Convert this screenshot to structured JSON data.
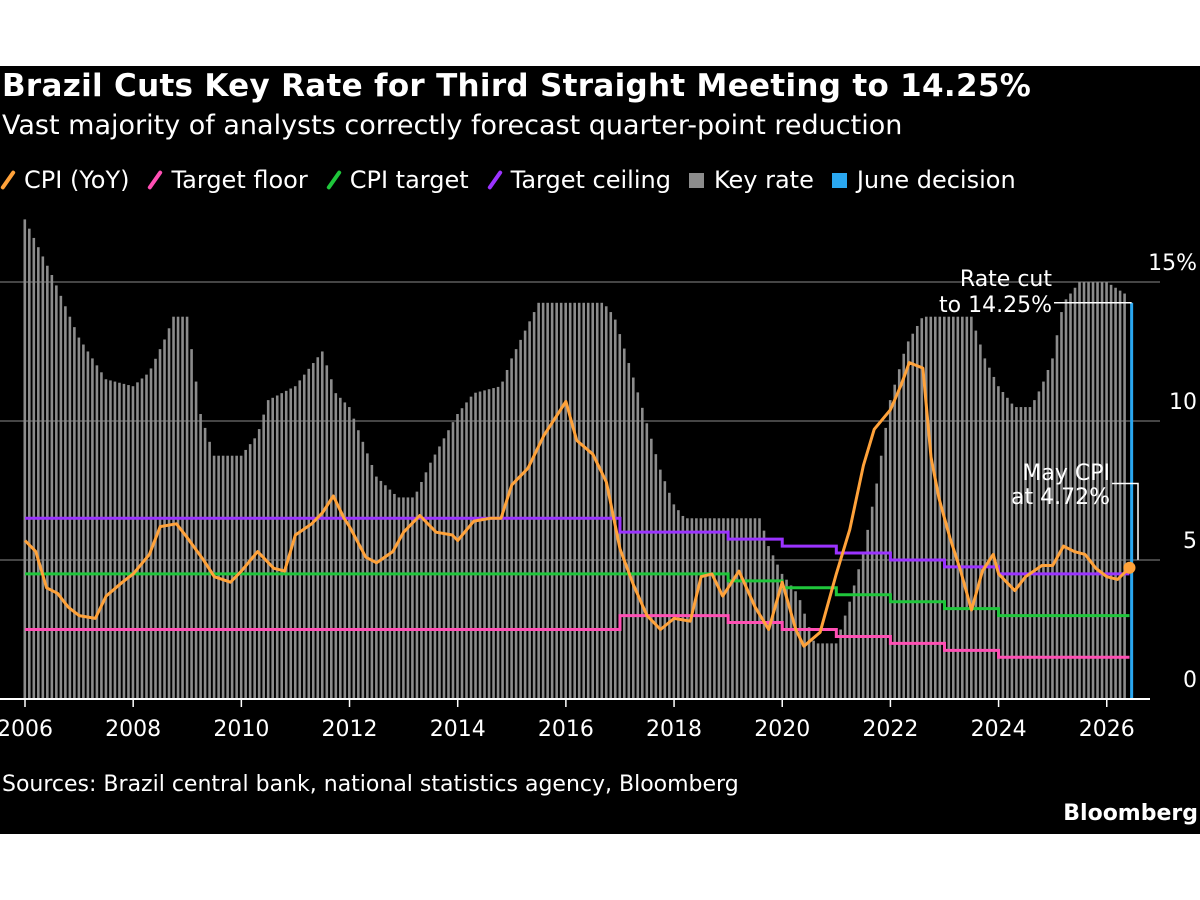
{
  "header": {
    "title": "Brazil Cuts Key Rate for Third Straight Meeting to 14.25%",
    "subtitle": "Vast majority of analysts correctly forecast quarter-point reduction"
  },
  "legend": [
    {
      "label": "CPI (YoY)",
      "color": "#ffa23a",
      "shape": "slash"
    },
    {
      "label": "Target floor",
      "color": "#ff4fb4",
      "shape": "slash"
    },
    {
      "label": "CPI target",
      "color": "#1fc63b",
      "shape": "slash"
    },
    {
      "label": "Target ceiling",
      "color": "#9b33ff",
      "shape": "slash"
    },
    {
      "label": "Key rate",
      "color": "#8c8c8c",
      "shape": "square"
    },
    {
      "label": "June decision",
      "color": "#2aa7f0",
      "shape": "square"
    }
  ],
  "annotations": {
    "rate_cut_line1": "Rate cut",
    "rate_cut_line2": "to 14.25%",
    "cpi_line1": "May CPI",
    "cpi_line2": "at 4.72%"
  },
  "footer": {
    "source": "Sources: Brazil central bank, national statistics agency, Bloomberg",
    "brand": "Bloomberg"
  },
  "chart_data": {
    "type": "bar",
    "x_ticks": [
      "2006",
      "2008",
      "2010",
      "2012",
      "2014",
      "2016",
      "2018",
      "2020",
      "2022",
      "2024",
      "2026"
    ],
    "y_ticks": [
      {
        "value": 0,
        "label": "0"
      },
      {
        "value": 5,
        "label": "5"
      },
      {
        "value": 10,
        "label": "10"
      },
      {
        "value": 15,
        "label": "15%"
      }
    ],
    "xlim": [
      2006.0,
      2026.67
    ],
    "ylim": [
      0,
      17.3
    ],
    "gridlines": [
      5,
      10,
      15
    ],
    "series": [
      {
        "name": "Key rate",
        "type": "bar",
        "color": "#8c8c8c",
        "points": [
          [
            2006.0,
            17.25
          ],
          [
            2006.5,
            15.25
          ],
          [
            2007.0,
            13.0
          ],
          [
            2007.5,
            11.5
          ],
          [
            2008.0,
            11.25
          ],
          [
            2008.3,
            11.75
          ],
          [
            2008.6,
            13.0
          ],
          [
            2008.75,
            13.75
          ],
          [
            2009.0,
            13.75
          ],
          [
            2009.25,
            10.25
          ],
          [
            2009.5,
            8.75
          ],
          [
            2010.0,
            8.75
          ],
          [
            2010.3,
            9.5
          ],
          [
            2010.5,
            10.75
          ],
          [
            2011.0,
            11.25
          ],
          [
            2011.5,
            12.5
          ],
          [
            2011.75,
            11.0
          ],
          [
            2012.0,
            10.5
          ],
          [
            2012.5,
            8.0
          ],
          [
            2012.9,
            7.25
          ],
          [
            2013.2,
            7.25
          ],
          [
            2013.5,
            8.5
          ],
          [
            2014.0,
            10.25
          ],
          [
            2014.3,
            11.0
          ],
          [
            2014.8,
            11.25
          ],
          [
            2015.0,
            12.25
          ],
          [
            2015.5,
            14.25
          ],
          [
            2016.7,
            14.25
          ],
          [
            2016.9,
            13.75
          ],
          [
            2017.3,
            11.25
          ],
          [
            2017.75,
            8.25
          ],
          [
            2018.0,
            7.0
          ],
          [
            2018.2,
            6.5
          ],
          [
            2019.6,
            6.5
          ],
          [
            2019.75,
            5.5
          ],
          [
            2020.0,
            4.5
          ],
          [
            2020.3,
            3.75
          ],
          [
            2020.6,
            2.0
          ],
          [
            2021.0,
            2.0
          ],
          [
            2021.25,
            3.5
          ],
          [
            2021.5,
            5.25
          ],
          [
            2021.75,
            7.75
          ],
          [
            2022.0,
            10.75
          ],
          [
            2022.3,
            12.75
          ],
          [
            2022.6,
            13.75
          ],
          [
            2023.5,
            13.75
          ],
          [
            2023.75,
            12.25
          ],
          [
            2024.0,
            11.25
          ],
          [
            2024.3,
            10.5
          ],
          [
            2024.6,
            10.5
          ],
          [
            2024.8,
            11.25
          ],
          [
            2025.0,
            12.25
          ],
          [
            2025.2,
            14.25
          ],
          [
            2025.5,
            15.0
          ],
          [
            2026.0,
            15.0
          ],
          [
            2026.2,
            14.75
          ],
          [
            2026.4,
            14.5
          ]
        ]
      },
      {
        "name": "CPI (YoY)",
        "type": "line",
        "color": "#ffa23a",
        "points": [
          [
            2006.0,
            5.7
          ],
          [
            2006.2,
            5.3
          ],
          [
            2006.4,
            4.0
          ],
          [
            2006.6,
            3.8
          ],
          [
            2006.8,
            3.3
          ],
          [
            2007.0,
            3.0
          ],
          [
            2007.3,
            2.9
          ],
          [
            2007.5,
            3.7
          ],
          [
            2007.8,
            4.2
          ],
          [
            2008.0,
            4.5
          ],
          [
            2008.3,
            5.2
          ],
          [
            2008.5,
            6.2
          ],
          [
            2008.8,
            6.3
          ],
          [
            2009.0,
            5.8
          ],
          [
            2009.3,
            5.0
          ],
          [
            2009.5,
            4.4
          ],
          [
            2009.8,
            4.2
          ],
          [
            2010.0,
            4.6
          ],
          [
            2010.3,
            5.3
          ],
          [
            2010.6,
            4.7
          ],
          [
            2010.8,
            4.6
          ],
          [
            2011.0,
            5.9
          ],
          [
            2011.3,
            6.3
          ],
          [
            2011.5,
            6.7
          ],
          [
            2011.7,
            7.3
          ],
          [
            2011.9,
            6.5
          ],
          [
            2012.0,
            6.2
          ],
          [
            2012.3,
            5.1
          ],
          [
            2012.5,
            4.9
          ],
          [
            2012.8,
            5.3
          ],
          [
            2013.0,
            6.0
          ],
          [
            2013.3,
            6.6
          ],
          [
            2013.6,
            6.0
          ],
          [
            2013.9,
            5.9
          ],
          [
            2014.0,
            5.7
          ],
          [
            2014.3,
            6.4
          ],
          [
            2014.6,
            6.5
          ],
          [
            2014.8,
            6.5
          ],
          [
            2015.0,
            7.7
          ],
          [
            2015.3,
            8.3
          ],
          [
            2015.6,
            9.5
          ],
          [
            2015.8,
            10.1
          ],
          [
            2016.0,
            10.7
          ],
          [
            2016.2,
            9.3
          ],
          [
            2016.5,
            8.8
          ],
          [
            2016.75,
            7.8
          ],
          [
            2017.0,
            5.4
          ],
          [
            2017.25,
            4.1
          ],
          [
            2017.5,
            3.0
          ],
          [
            2017.75,
            2.5
          ],
          [
            2018.0,
            2.9
          ],
          [
            2018.3,
            2.8
          ],
          [
            2018.5,
            4.4
          ],
          [
            2018.7,
            4.5
          ],
          [
            2018.9,
            3.7
          ],
          [
            2019.2,
            4.6
          ],
          [
            2019.5,
            3.3
          ],
          [
            2019.75,
            2.5
          ],
          [
            2020.0,
            4.2
          ],
          [
            2020.25,
            2.5
          ],
          [
            2020.4,
            1.9
          ],
          [
            2020.7,
            2.4
          ],
          [
            2021.0,
            4.5
          ],
          [
            2021.25,
            6.1
          ],
          [
            2021.5,
            8.4
          ],
          [
            2021.7,
            9.7
          ],
          [
            2022.0,
            10.4
          ],
          [
            2022.2,
            11.3
          ],
          [
            2022.35,
            12.1
          ],
          [
            2022.6,
            11.9
          ],
          [
            2022.75,
            8.7
          ],
          [
            2022.9,
            7.2
          ],
          [
            2023.1,
            5.8
          ],
          [
            2023.3,
            4.6
          ],
          [
            2023.5,
            3.2
          ],
          [
            2023.7,
            4.6
          ],
          [
            2023.9,
            5.2
          ],
          [
            2024.0,
            4.5
          ],
          [
            2024.3,
            3.9
          ],
          [
            2024.5,
            4.4
          ],
          [
            2024.8,
            4.8
          ],
          [
            2025.0,
            4.8
          ],
          [
            2025.2,
            5.5
          ],
          [
            2025.4,
            5.3
          ],
          [
            2025.6,
            5.2
          ],
          [
            2025.8,
            4.7
          ],
          [
            2026.0,
            4.4
          ],
          [
            2026.2,
            4.3
          ],
          [
            2026.42,
            4.72
          ]
        ]
      },
      {
        "name": "Target ceiling",
        "type": "step",
        "color": "#9b33ff",
        "points": [
          [
            2006.0,
            6.5
          ],
          [
            2017.0,
            6.0
          ],
          [
            2019.0,
            5.75
          ],
          [
            2020.0,
            5.5
          ],
          [
            2021.0,
            5.25
          ],
          [
            2022.0,
            5.0
          ],
          [
            2023.0,
            4.75
          ],
          [
            2024.0,
            4.5
          ],
          [
            2026.42,
            4.5
          ]
        ]
      },
      {
        "name": "CPI target",
        "type": "step",
        "color": "#1fc63b",
        "points": [
          [
            2006.0,
            4.5
          ],
          [
            2019.0,
            4.25
          ],
          [
            2020.0,
            4.0
          ],
          [
            2021.0,
            3.75
          ],
          [
            2022.0,
            3.5
          ],
          [
            2023.0,
            3.25
          ],
          [
            2024.0,
            3.0
          ],
          [
            2026.42,
            3.0
          ]
        ]
      },
      {
        "name": "Target floor",
        "type": "step",
        "color": "#ff4fb4",
        "points": [
          [
            2006.0,
            2.5
          ],
          [
            2017.0,
            3.0
          ],
          [
            2019.0,
            2.75
          ],
          [
            2020.0,
            2.5
          ],
          [
            2021.0,
            2.25
          ],
          [
            2022.0,
            2.0
          ],
          [
            2023.0,
            1.75
          ],
          [
            2024.0,
            1.5
          ],
          [
            2026.42,
            1.5
          ]
        ]
      },
      {
        "name": "June decision",
        "type": "bar",
        "color": "#2aa7f0",
        "points": [
          [
            2026.46,
            14.25
          ]
        ]
      }
    ]
  }
}
